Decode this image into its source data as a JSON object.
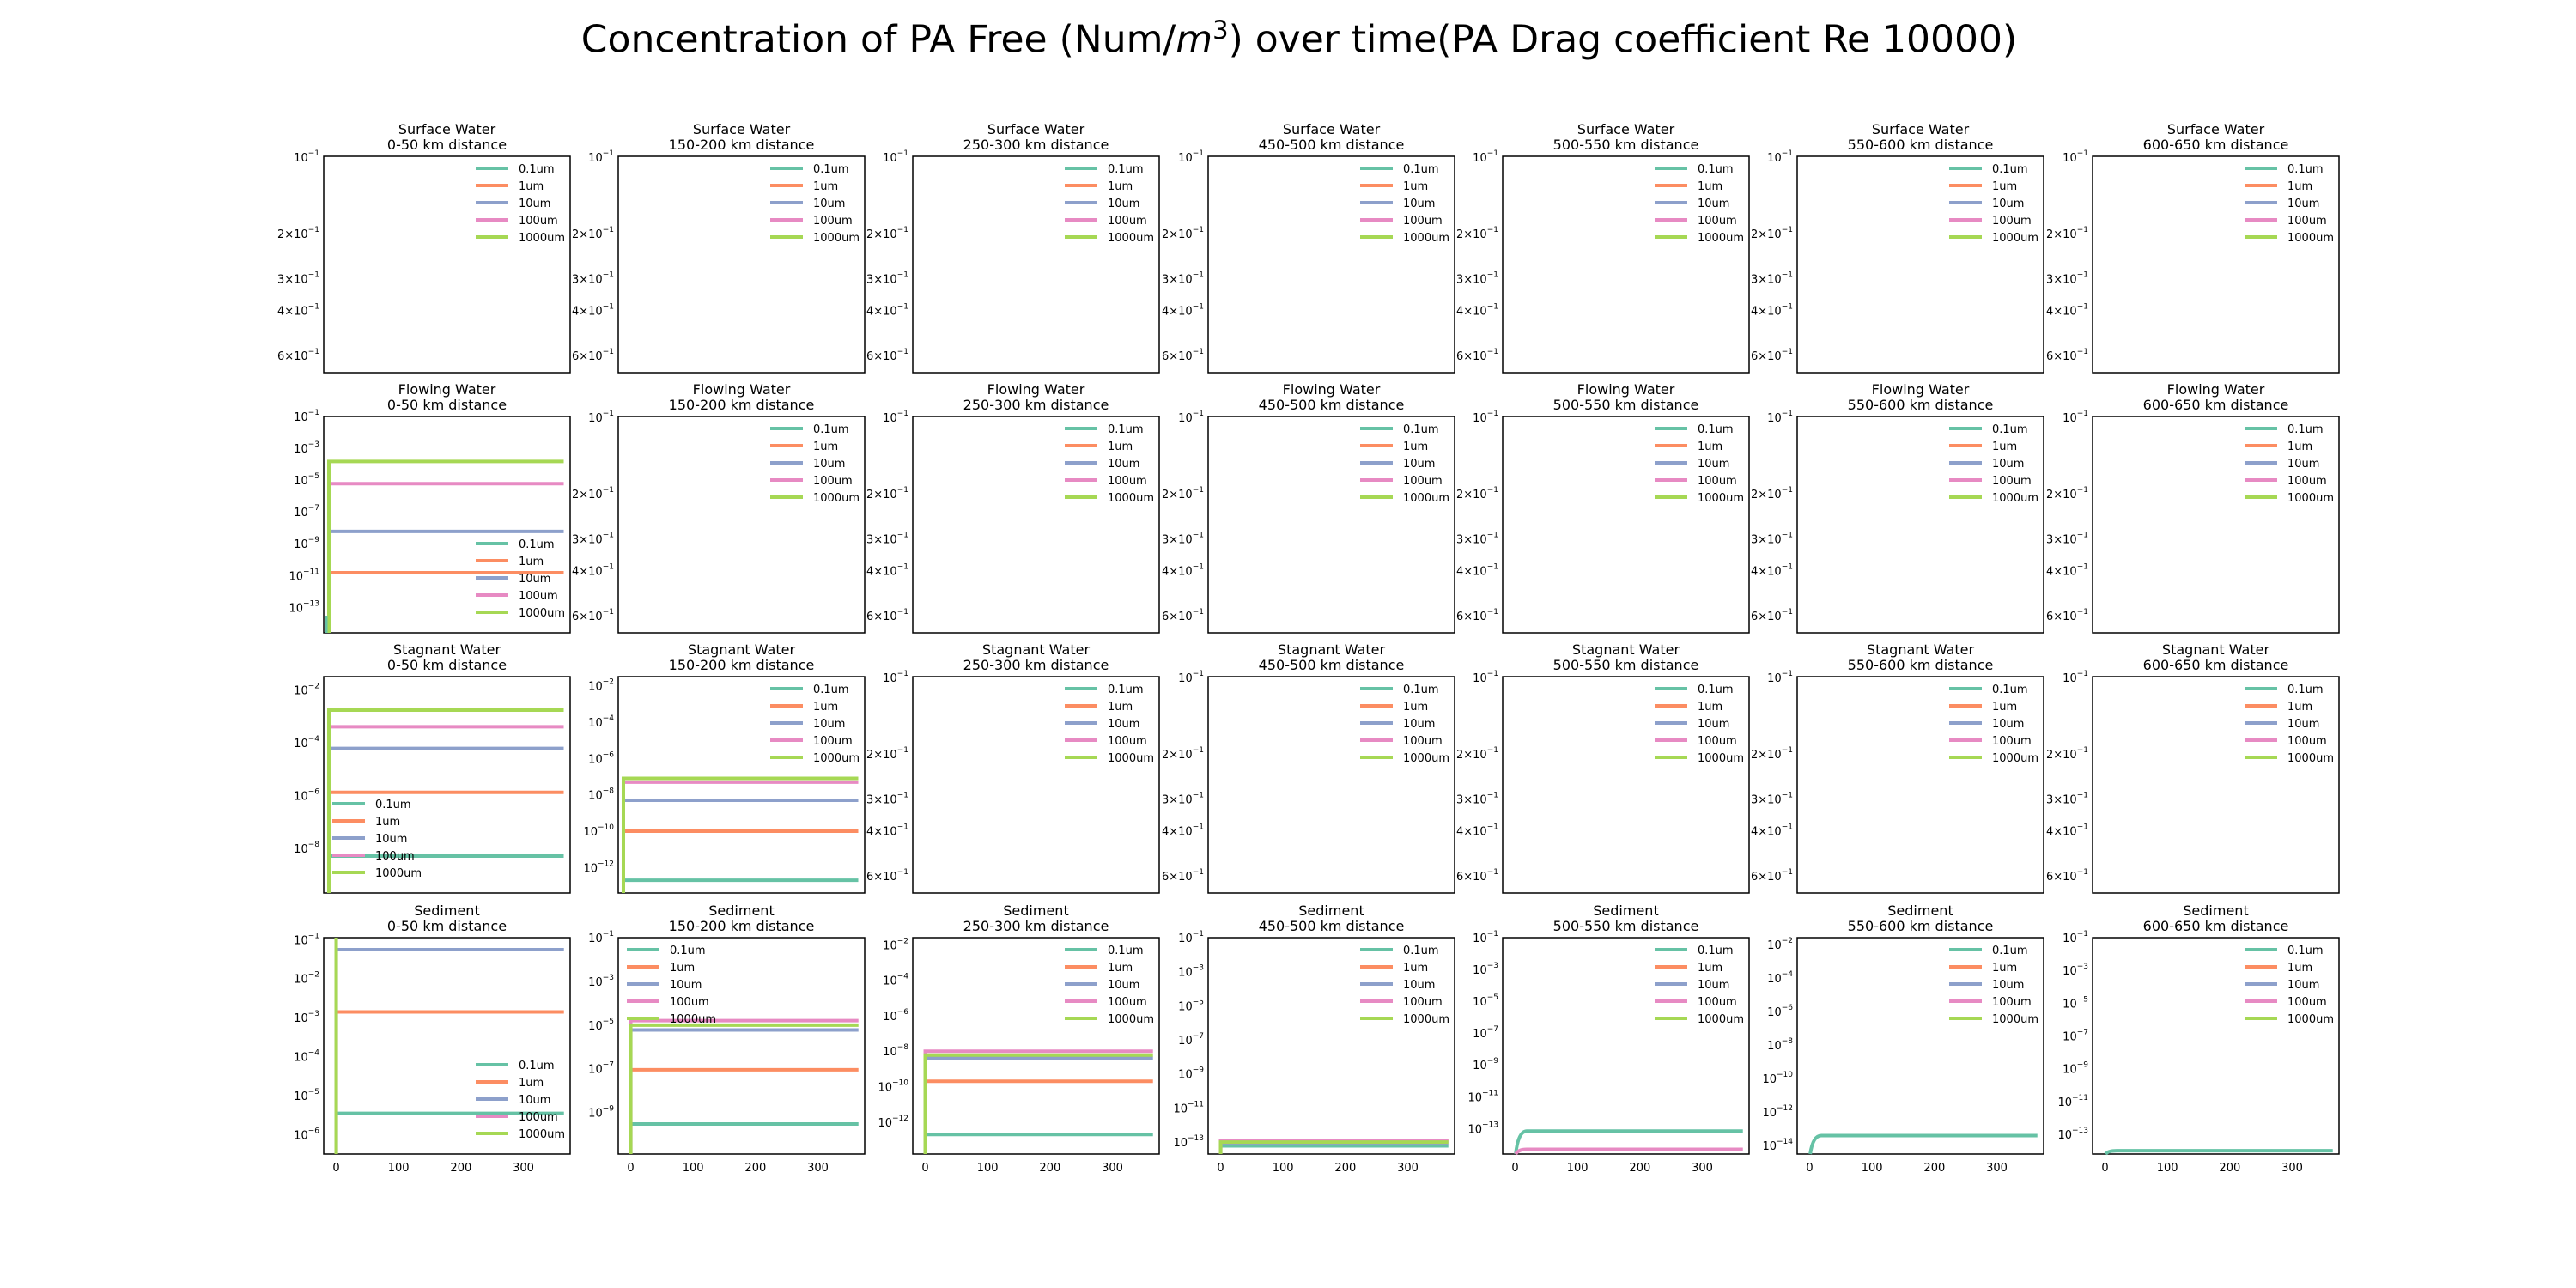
{
  "figure": {
    "title_prefix": "Concentration of PA Free (Num/",
    "title_unit": "m",
    "title_exp": "3",
    "title_suffix": ") over time(PA Drag coefficient Re 10000)"
  },
  "colors": {
    "0.1um": "#66c2a5",
    "1um": "#fc8d62",
    "10um": "#8da0cb",
    "100um": "#e78ac3",
    "1000um": "#a6d854"
  },
  "chart_data": [
    {
      "type": "line",
      "row": 0,
      "col": 0,
      "title": [
        "Surface Water",
        "0-50 km distance"
      ],
      "empty": true,
      "yticks": [
        "10^{-1}",
        "2×10^{-1}",
        "3×10^{-1}",
        "4×10^{-1}",
        "6×10^{-1}"
      ],
      "legend": "top-right",
      "series": [
        {
          "name": "0.1um"
        },
        {
          "name": "1um"
        },
        {
          "name": "10um"
        },
        {
          "name": "100um"
        },
        {
          "name": "1000um"
        }
      ]
    },
    {
      "type": "line",
      "row": 0,
      "col": 1,
      "title": [
        "Surface Water",
        "150-200 km distance"
      ],
      "empty": true,
      "yticks": [
        "10^{-1}",
        "2×10^{-1}",
        "3×10^{-1}",
        "4×10^{-1}",
        "6×10^{-1}"
      ],
      "legend": "top-right",
      "series": [
        {
          "name": "0.1um"
        },
        {
          "name": "1um"
        },
        {
          "name": "10um"
        },
        {
          "name": "100um"
        },
        {
          "name": "1000um"
        }
      ]
    },
    {
      "type": "line",
      "row": 0,
      "col": 2,
      "title": [
        "Surface Water",
        "250-300 km distance"
      ],
      "empty": true,
      "yticks": [
        "10^{-1}",
        "2×10^{-1}",
        "3×10^{-1}",
        "4×10^{-1}",
        "6×10^{-1}"
      ],
      "legend": "top-right",
      "series": [
        {
          "name": "0.1um"
        },
        {
          "name": "1um"
        },
        {
          "name": "10um"
        },
        {
          "name": "100um"
        },
        {
          "name": "1000um"
        }
      ]
    },
    {
      "type": "line",
      "row": 0,
      "col": 3,
      "title": [
        "Surface Water",
        "450-500 km distance"
      ],
      "empty": true,
      "yticks": [
        "10^{-1}",
        "2×10^{-1}",
        "3×10^{-1}",
        "4×10^{-1}",
        "6×10^{-1}"
      ],
      "legend": "top-right",
      "series": [
        {
          "name": "0.1um"
        },
        {
          "name": "1um"
        },
        {
          "name": "10um"
        },
        {
          "name": "100um"
        },
        {
          "name": "1000um"
        }
      ]
    },
    {
      "type": "line",
      "row": 0,
      "col": 4,
      "title": [
        "Surface Water",
        "500-550 km distance"
      ],
      "empty": true,
      "yticks": [
        "10^{-1}",
        "2×10^{-1}",
        "3×10^{-1}",
        "4×10^{-1}",
        "6×10^{-1}"
      ],
      "legend": "top-right",
      "series": [
        {
          "name": "0.1um"
        },
        {
          "name": "1um"
        },
        {
          "name": "10um"
        },
        {
          "name": "100um"
        },
        {
          "name": "1000um"
        }
      ]
    },
    {
      "type": "line",
      "row": 0,
      "col": 5,
      "title": [
        "Surface Water",
        "550-600 km distance"
      ],
      "empty": true,
      "yticks": [
        "10^{-1}",
        "2×10^{-1}",
        "3×10^{-1}",
        "4×10^{-1}",
        "6×10^{-1}"
      ],
      "legend": "top-right",
      "series": [
        {
          "name": "0.1um"
        },
        {
          "name": "1um"
        },
        {
          "name": "10um"
        },
        {
          "name": "100um"
        },
        {
          "name": "1000um"
        }
      ]
    },
    {
      "type": "line",
      "row": 0,
      "col": 6,
      "title": [
        "Surface Water",
        "600-650 km distance"
      ],
      "empty": true,
      "yticks": [
        "10^{-1}",
        "2×10^{-1}",
        "3×10^{-1}",
        "4×10^{-1}",
        "6×10^{-1}"
      ],
      "legend": "top-right",
      "series": [
        {
          "name": "0.1um"
        },
        {
          "name": "1um"
        },
        {
          "name": "10um"
        },
        {
          "name": "100um"
        },
        {
          "name": "1000um"
        }
      ]
    },
    {
      "type": "line",
      "row": 1,
      "col": 0,
      "title": [
        "Flowing Water",
        "0-50 km distance"
      ],
      "empty": false,
      "xlim": [
        -8,
        375
      ],
      "ylim_log": [
        -14.6,
        -1
      ],
      "yticks_exp": [
        -1,
        -3,
        -5,
        -7,
        -9,
        -11,
        -13
      ],
      "legend": "lower-right",
      "x_drop": 0,
      "series": [
        {
          "name": "0.1um",
          "value": null
        },
        {
          "name": "1um",
          "value": 1.5e-11
        },
        {
          "name": "10um",
          "value": 6e-09
        },
        {
          "name": "100um",
          "value": 6e-06
        },
        {
          "name": "1000um",
          "value": 0.00015
        }
      ]
    },
    {
      "type": "line",
      "row": 1,
      "col": 1,
      "title": [
        "Flowing Water",
        "150-200 km distance"
      ],
      "empty": true,
      "yticks": [
        "10^{-1}",
        "2×10^{-1}",
        "3×10^{-1}",
        "4×10^{-1}",
        "6×10^{-1}"
      ],
      "legend": "top-right",
      "series": [
        {
          "name": "0.1um"
        },
        {
          "name": "1um"
        },
        {
          "name": "10um"
        },
        {
          "name": "100um"
        },
        {
          "name": "1000um"
        }
      ]
    },
    {
      "type": "line",
      "row": 1,
      "col": 2,
      "title": [
        "Flowing Water",
        "250-300 km distance"
      ],
      "empty": true,
      "yticks": [
        "10^{-1}",
        "2×10^{-1}",
        "3×10^{-1}",
        "4×10^{-1}",
        "6×10^{-1}"
      ],
      "legend": "top-right",
      "series": [
        {
          "name": "0.1um"
        },
        {
          "name": "1um"
        },
        {
          "name": "10um"
        },
        {
          "name": "100um"
        },
        {
          "name": "1000um"
        }
      ]
    },
    {
      "type": "line",
      "row": 1,
      "col": 3,
      "title": [
        "Flowing Water",
        "450-500 km distance"
      ],
      "empty": true,
      "yticks": [
        "10^{-1}",
        "2×10^{-1}",
        "3×10^{-1}",
        "4×10^{-1}",
        "6×10^{-1}"
      ],
      "legend": "top-right",
      "series": [
        {
          "name": "0.1um"
        },
        {
          "name": "1um"
        },
        {
          "name": "10um"
        },
        {
          "name": "100um"
        },
        {
          "name": "1000um"
        }
      ]
    },
    {
      "type": "line",
      "row": 1,
      "col": 4,
      "title": [
        "Flowing Water",
        "500-550 km distance"
      ],
      "empty": true,
      "yticks": [
        "10^{-1}",
        "2×10^{-1}",
        "3×10^{-1}",
        "4×10^{-1}",
        "6×10^{-1}"
      ],
      "legend": "top-right",
      "series": [
        {
          "name": "0.1um"
        },
        {
          "name": "1um"
        },
        {
          "name": "10um"
        },
        {
          "name": "100um"
        },
        {
          "name": "1000um"
        }
      ]
    },
    {
      "type": "line",
      "row": 1,
      "col": 5,
      "title": [
        "Flowing Water",
        "550-600 km distance"
      ],
      "empty": true,
      "yticks": [
        "10^{-1}",
        "2×10^{-1}",
        "3×10^{-1}",
        "4×10^{-1}",
        "6×10^{-1}"
      ],
      "legend": "top-right",
      "series": [
        {
          "name": "0.1um"
        },
        {
          "name": "1um"
        },
        {
          "name": "10um"
        },
        {
          "name": "100um"
        },
        {
          "name": "1000um"
        }
      ]
    },
    {
      "type": "line",
      "row": 1,
      "col": 6,
      "title": [
        "Flowing Water",
        "600-650 km distance"
      ],
      "empty": true,
      "yticks": [
        "10^{-1}",
        "2×10^{-1}",
        "3×10^{-1}",
        "4×10^{-1}",
        "6×10^{-1}"
      ],
      "legend": "top-right",
      "series": [
        {
          "name": "0.1um"
        },
        {
          "name": "1um"
        },
        {
          "name": "10um"
        },
        {
          "name": "100um"
        },
        {
          "name": "1000um"
        }
      ]
    },
    {
      "type": "line",
      "row": 2,
      "col": 0,
      "title": [
        "Stagnant Water",
        "0-50 km distance"
      ],
      "empty": false,
      "xlim": [
        -8,
        375
      ],
      "ylim_log": [
        -9.7,
        -1.5
      ],
      "yticks_exp": [
        -2,
        -4,
        -6,
        -8
      ],
      "legend": "lower-left",
      "x_drop": 0,
      "series": [
        {
          "name": "0.1um",
          "value": 5e-09
        },
        {
          "name": "1um",
          "value": 1.3e-06
        },
        {
          "name": "10um",
          "value": 6e-05
        },
        {
          "name": "100um",
          "value": 0.0004
        },
        {
          "name": "1000um",
          "value": 0.0017
        }
      ]
    },
    {
      "type": "line",
      "row": 2,
      "col": 1,
      "title": [
        "Stagnant Water",
        "150-200 km distance"
      ],
      "empty": false,
      "xlim": [
        -8,
        375
      ],
      "ylim_log": [
        -13.4,
        -1.5
      ],
      "yticks_exp": [
        -2,
        -4,
        -6,
        -8,
        -10,
        -12
      ],
      "legend": "top-right",
      "x_drop": 0,
      "series": [
        {
          "name": "0.1um",
          "value": 2e-13
        },
        {
          "name": "1um",
          "value": 1e-10
        },
        {
          "name": "10um",
          "value": 5e-09
        },
        {
          "name": "100um",
          "value": 5e-08
        },
        {
          "name": "1000um",
          "value": 8e-08
        }
      ]
    },
    {
      "type": "line",
      "row": 2,
      "col": 2,
      "title": [
        "Stagnant Water",
        "250-300 km distance"
      ],
      "empty": true,
      "yticks": [
        "10^{-1}",
        "2×10^{-1}",
        "3×10^{-1}",
        "4×10^{-1}",
        "6×10^{-1}"
      ],
      "legend": "top-right",
      "series": [
        {
          "name": "0.1um"
        },
        {
          "name": "1um"
        },
        {
          "name": "10um"
        },
        {
          "name": "100um"
        },
        {
          "name": "1000um"
        }
      ]
    },
    {
      "type": "line",
      "row": 2,
      "col": 3,
      "title": [
        "Stagnant Water",
        "450-500 km distance"
      ],
      "empty": true,
      "yticks": [
        "10^{-1}",
        "2×10^{-1}",
        "3×10^{-1}",
        "4×10^{-1}",
        "6×10^{-1}"
      ],
      "legend": "top-right",
      "series": [
        {
          "name": "0.1um"
        },
        {
          "name": "1um"
        },
        {
          "name": "10um"
        },
        {
          "name": "100um"
        },
        {
          "name": "1000um"
        }
      ]
    },
    {
      "type": "line",
      "row": 2,
      "col": 4,
      "title": [
        "Stagnant Water",
        "500-550 km distance"
      ],
      "empty": true,
      "yticks": [
        "10^{-1}",
        "2×10^{-1}",
        "3×10^{-1}",
        "4×10^{-1}",
        "6×10^{-1}"
      ],
      "legend": "top-right",
      "series": [
        {
          "name": "0.1um"
        },
        {
          "name": "1um"
        },
        {
          "name": "10um"
        },
        {
          "name": "100um"
        },
        {
          "name": "1000um"
        }
      ]
    },
    {
      "type": "line",
      "row": 2,
      "col": 5,
      "title": [
        "Stagnant Water",
        "550-600 km distance"
      ],
      "empty": true,
      "yticks": [
        "10^{-1}",
        "2×10^{-1}",
        "3×10^{-1}",
        "4×10^{-1}",
        "6×10^{-1}"
      ],
      "legend": "top-right",
      "series": [
        {
          "name": "0.1um"
        },
        {
          "name": "1um"
        },
        {
          "name": "10um"
        },
        {
          "name": "100um"
        },
        {
          "name": "1000um"
        }
      ]
    },
    {
      "type": "line",
      "row": 2,
      "col": 6,
      "title": [
        "Stagnant Water",
        "600-650 km distance"
      ],
      "empty": true,
      "yticks": [
        "10^{-1}",
        "2×10^{-1}",
        "3×10^{-1}",
        "4×10^{-1}",
        "6×10^{-1}"
      ],
      "legend": "top-right",
      "series": [
        {
          "name": "0.1um"
        },
        {
          "name": "1um"
        },
        {
          "name": "10um"
        },
        {
          "name": "100um"
        },
        {
          "name": "1000um"
        }
      ]
    },
    {
      "type": "line",
      "row": 3,
      "col": 0,
      "title": [
        "Sediment",
        "0-50 km distance"
      ],
      "empty": false,
      "xlim": [
        -20,
        375
      ],
      "xticks": [
        0,
        100,
        200,
        300
      ],
      "ylim_log": [
        -6.5,
        -0.95
      ],
      "yticks_exp": [
        -1,
        -2,
        -3,
        -4,
        -5,
        -6
      ],
      "legend": "lower-right",
      "x_drop": 0,
      "series": [
        {
          "name": "0.1um",
          "value": 3.5e-06
        },
        {
          "name": "1um",
          "value": 0.0014
        },
        {
          "name": "10um",
          "value": 0.055
        },
        {
          "name": "100um",
          "value": null
        },
        {
          "name": "1000um",
          "value": null
        }
      ]
    },
    {
      "type": "line",
      "row": 3,
      "col": 1,
      "title": [
        "Sediment",
        "150-200 km distance"
      ],
      "empty": false,
      "xlim": [
        -20,
        375
      ],
      "xticks": [
        0,
        100,
        200,
        300
      ],
      "ylim_log": [
        -10.9,
        -1
      ],
      "yticks_exp": [
        -1,
        -3,
        -5,
        -7,
        -9
      ],
      "legend": "top-left",
      "x_drop": 0,
      "series": [
        {
          "name": "0.1um",
          "value": 3e-10
        },
        {
          "name": "1um",
          "value": 9e-08
        },
        {
          "name": "10um",
          "value": 6e-06
        },
        {
          "name": "100um",
          "value": 1.6e-05
        },
        {
          "name": "1000um",
          "value": 1e-05
        }
      ]
    },
    {
      "type": "line",
      "row": 3,
      "col": 2,
      "title": [
        "Sediment",
        "250-300 km distance"
      ],
      "empty": false,
      "xlim": [
        -20,
        375
      ],
      "xticks": [
        0,
        100,
        200,
        300
      ],
      "ylim_log": [
        -13.8,
        -1.6
      ],
      "yticks_exp": [
        -2,
        -4,
        -6,
        -8,
        -10,
        -12
      ],
      "legend": "top-right",
      "x_drop": 0,
      "series": [
        {
          "name": "0.1um",
          "value": 2e-13
        },
        {
          "name": "1um",
          "value": 2e-10
        },
        {
          "name": "10um",
          "value": 4e-09
        },
        {
          "name": "100um",
          "value": 1e-08
        },
        {
          "name": "1000um",
          "value": 6e-09
        }
      ]
    },
    {
      "type": "line",
      "row": 3,
      "col": 3,
      "title": [
        "Sediment",
        "450-500 km distance"
      ],
      "empty": false,
      "xlim": [
        -20,
        375
      ],
      "xticks": [
        0,
        100,
        200,
        300
      ],
      "ylim_log": [
        -13.7,
        -1
      ],
      "yticks_exp": [
        -1,
        -3,
        -5,
        -7,
        -9,
        -11,
        -13
      ],
      "legend": "top-right",
      "x_drop": 0,
      "series": [
        {
          "name": "0.1um",
          "value": 6e-14
        },
        {
          "name": "1um",
          "value": 1.2e-13
        },
        {
          "name": "10um",
          "value": 8e-14
        },
        {
          "name": "100um",
          "value": 1.2e-13
        },
        {
          "name": "1000um",
          "value": 1e-13
        }
      ]
    },
    {
      "type": "line",
      "row": 3,
      "col": 4,
      "title": [
        "Sediment",
        "500-550 km distance"
      ],
      "empty": false,
      "xlim": [
        -20,
        375
      ],
      "xticks": [
        0,
        100,
        200,
        300
      ],
      "ylim_log": [
        -14.6,
        -1
      ],
      "yticks_exp": [
        -1,
        -3,
        -5,
        -7,
        -9,
        -11,
        -13
      ],
      "legend": "top-right",
      "x_drop": 5,
      "series": [
        {
          "name": "0.1um",
          "value": 7e-14
        },
        {
          "name": "1um",
          "value": null
        },
        {
          "name": "10um",
          "value": null
        },
        {
          "name": "100um",
          "value": 5e-15
        },
        {
          "name": "1000um",
          "value": null
        }
      ]
    },
    {
      "type": "line",
      "row": 3,
      "col": 5,
      "title": [
        "Sediment",
        "550-600 km distance"
      ],
      "empty": false,
      "xlim": [
        -20,
        375
      ],
      "xticks": [
        0,
        100,
        200,
        300
      ],
      "ylim_log": [
        -14.5,
        -1.6
      ],
      "yticks_exp": [
        -2,
        -4,
        -6,
        -8,
        -10,
        -12,
        -14
      ],
      "legend": "top-right",
      "x_drop": 5,
      "series": [
        {
          "name": "0.1um",
          "value": 4e-14
        },
        {
          "name": "1um",
          "value": null
        },
        {
          "name": "10um",
          "value": null
        },
        {
          "name": "100um",
          "value": null
        },
        {
          "name": "1000um",
          "value": null
        }
      ]
    },
    {
      "type": "line",
      "row": 3,
      "col": 6,
      "title": [
        "Sediment",
        "600-650 km distance"
      ],
      "empty": false,
      "xlim": [
        -20,
        375
      ],
      "xticks": [
        0,
        100,
        200,
        300
      ],
      "ylim_log": [
        -14.2,
        -1
      ],
      "yticks_exp": [
        -1,
        -3,
        -5,
        -7,
        -9,
        -11,
        -13
      ],
      "legend": "top-right",
      "x_drop": 5,
      "series": [
        {
          "name": "0.1um",
          "value": 1e-14
        },
        {
          "name": "1um",
          "value": null
        },
        {
          "name": "10um",
          "value": null
        },
        {
          "name": "100um",
          "value": null
        },
        {
          "name": "1000um",
          "value": null
        }
      ]
    }
  ]
}
